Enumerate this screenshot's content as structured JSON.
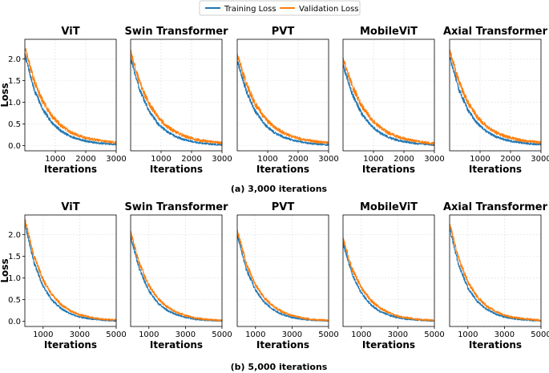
{
  "legend": [
    {
      "label": "Training Loss",
      "color": "#1f77b4"
    },
    {
      "label": "Validation Loss",
      "color": "#ff7f0e"
    }
  ],
  "captions": [
    "(a) 3,000 iterations",
    "(b) 5,000 iterations"
  ],
  "chart_data": [
    {
      "type": "line",
      "row": 0,
      "col": 0,
      "title": "ViT",
      "xlabel": "Iterations",
      "ylabel": "Loss",
      "xlim": [
        0,
        3000
      ],
      "ylim": [
        -0.12,
        2.45
      ],
      "xticks": [
        1000,
        2000,
        3000
      ],
      "xticklabels": [
        "1000",
        "2000",
        "3000"
      ],
      "yticks": [
        0.0,
        0.5,
        1.0,
        1.5,
        2.0
      ],
      "yticklabels": [
        "0.0",
        "0.5",
        "1.0",
        "1.5",
        "2.0"
      ],
      "series": [
        {
          "name": "Training Loss",
          "color": "#1f77b4",
          "x": [
            0,
            300,
            600,
            900,
            1200,
            1500,
            1800,
            2100,
            2400,
            2700,
            3000
          ],
          "y": [
            2.1,
            1.3,
            0.82,
            0.52,
            0.33,
            0.21,
            0.14,
            0.09,
            0.06,
            0.04,
            0.03
          ],
          "noise": 0.06
        },
        {
          "name": "Validation Loss",
          "color": "#ff7f0e",
          "x": [
            0,
            300,
            600,
            900,
            1200,
            1500,
            1800,
            2100,
            2400,
            2700,
            3000
          ],
          "y": [
            2.25,
            1.5,
            1.0,
            0.67,
            0.45,
            0.31,
            0.22,
            0.16,
            0.12,
            0.09,
            0.07
          ],
          "noise": 0.08
        }
      ]
    },
    {
      "type": "line",
      "row": 0,
      "col": 1,
      "title": "Swin Transformer",
      "xlabel": "Iterations",
      "ylabel": "",
      "xlim": [
        0,
        3000
      ],
      "ylim": [
        -0.12,
        2.45
      ],
      "xticks": [
        1000,
        2000,
        3000
      ],
      "xticklabels": [
        "1000",
        "2000",
        "3000"
      ],
      "yticks": [],
      "yticklabels": [],
      "series": [
        {
          "name": "Training Loss",
          "color": "#1f77b4",
          "x": [
            0,
            300,
            600,
            900,
            1200,
            1500,
            1800,
            2100,
            2400,
            2700,
            3000
          ],
          "y": [
            2.0,
            1.28,
            0.8,
            0.5,
            0.32,
            0.2,
            0.13,
            0.08,
            0.05,
            0.03,
            0.02
          ],
          "noise": 0.06
        },
        {
          "name": "Validation Loss",
          "color": "#ff7f0e",
          "x": [
            0,
            300,
            600,
            900,
            1200,
            1500,
            1800,
            2100,
            2400,
            2700,
            3000
          ],
          "y": [
            2.15,
            1.45,
            0.97,
            0.65,
            0.44,
            0.3,
            0.21,
            0.15,
            0.11,
            0.08,
            0.06
          ],
          "noise": 0.08
        }
      ]
    },
    {
      "type": "line",
      "row": 0,
      "col": 2,
      "title": "PVT",
      "xlabel": "Iterations",
      "ylabel": "",
      "xlim": [
        0,
        3000
      ],
      "ylim": [
        -0.12,
        2.45
      ],
      "xticks": [
        1000,
        2000,
        3000
      ],
      "xticklabels": [
        "1000",
        "2000",
        "3000"
      ],
      "yticks": [],
      "yticklabels": [],
      "series": [
        {
          "name": "Training Loss",
          "color": "#1f77b4",
          "x": [
            0,
            300,
            600,
            900,
            1200,
            1500,
            1800,
            2100,
            2400,
            2700,
            3000
          ],
          "y": [
            1.95,
            1.25,
            0.78,
            0.49,
            0.31,
            0.2,
            0.13,
            0.08,
            0.05,
            0.03,
            0.02
          ],
          "noise": 0.06
        },
        {
          "name": "Validation Loss",
          "color": "#ff7f0e",
          "x": [
            0,
            300,
            600,
            900,
            1200,
            1500,
            1800,
            2100,
            2400,
            2700,
            3000
          ],
          "y": [
            2.1,
            1.42,
            0.95,
            0.64,
            0.43,
            0.3,
            0.21,
            0.15,
            0.11,
            0.08,
            0.06
          ],
          "noise": 0.08
        }
      ]
    },
    {
      "type": "line",
      "row": 0,
      "col": 3,
      "title": "MobileViT",
      "xlabel": "Iterations",
      "ylabel": "",
      "xlim": [
        0,
        3000
      ],
      "ylim": [
        -0.12,
        2.45
      ],
      "xticks": [
        1000,
        2000,
        3000
      ],
      "xticklabels": [
        "1000",
        "2000",
        "3000"
      ],
      "yticks": [],
      "yticklabels": [],
      "series": [
        {
          "name": "Training Loss",
          "color": "#1f77b4",
          "x": [
            0,
            300,
            600,
            900,
            1200,
            1500,
            1800,
            2100,
            2400,
            2700,
            3000
          ],
          "y": [
            1.85,
            1.2,
            0.75,
            0.47,
            0.3,
            0.19,
            0.12,
            0.08,
            0.05,
            0.03,
            0.02
          ],
          "noise": 0.06
        },
        {
          "name": "Validation Loss",
          "color": "#ff7f0e",
          "x": [
            0,
            300,
            600,
            900,
            1200,
            1500,
            1800,
            2100,
            2400,
            2700,
            3000
          ],
          "y": [
            2.0,
            1.38,
            0.93,
            0.63,
            0.43,
            0.29,
            0.2,
            0.14,
            0.1,
            0.07,
            0.05
          ],
          "noise": 0.08
        }
      ]
    },
    {
      "type": "line",
      "row": 0,
      "col": 4,
      "title": "Axial Transformer",
      "xlabel": "Iterations",
      "ylabel": "",
      "xlim": [
        0,
        3000
      ],
      "ylim": [
        -0.12,
        2.45
      ],
      "xticks": [
        1000,
        2000,
        3000
      ],
      "xticklabels": [
        "1000",
        "2000",
        "3000"
      ],
      "yticks": [],
      "yticklabels": [],
      "series": [
        {
          "name": "Training Loss",
          "color": "#1f77b4",
          "x": [
            0,
            300,
            600,
            900,
            1200,
            1500,
            1800,
            2100,
            2400,
            2700,
            3000
          ],
          "y": [
            2.05,
            1.3,
            0.82,
            0.52,
            0.33,
            0.21,
            0.14,
            0.09,
            0.06,
            0.04,
            0.03
          ],
          "noise": 0.06
        },
        {
          "name": "Validation Loss",
          "color": "#ff7f0e",
          "x": [
            0,
            300,
            600,
            900,
            1200,
            1500,
            1800,
            2100,
            2400,
            2700,
            3000
          ],
          "y": [
            2.2,
            1.48,
            0.99,
            0.66,
            0.45,
            0.31,
            0.22,
            0.16,
            0.12,
            0.09,
            0.07
          ],
          "noise": 0.08
        }
      ]
    },
    {
      "type": "line",
      "row": 1,
      "col": 0,
      "title": "ViT",
      "xlabel": "Iterations",
      "ylabel": "Loss",
      "xlim": [
        0,
        5000
      ],
      "ylim": [
        -0.12,
        2.45
      ],
      "xticks": [
        1000,
        3000,
        5000
      ],
      "xticklabels": [
        "1000",
        "3000",
        "5000"
      ],
      "yticks": [
        0.0,
        0.5,
        1.0,
        1.5,
        2.0
      ],
      "yticklabels": [
        "0.0",
        "0.5",
        "1.0",
        "1.5",
        "2.0"
      ],
      "series": [
        {
          "name": "Training Loss",
          "color": "#1f77b4",
          "x": [
            0,
            500,
            1000,
            1500,
            2000,
            2500,
            3000,
            3500,
            4000,
            4500,
            5000
          ],
          "y": [
            2.25,
            1.35,
            0.8,
            0.48,
            0.29,
            0.17,
            0.1,
            0.06,
            0.04,
            0.02,
            0.01
          ],
          "noise": 0.05
        },
        {
          "name": "Validation Loss",
          "color": "#ff7f0e",
          "x": [
            0,
            500,
            1000,
            1500,
            2000,
            2500,
            3000,
            3500,
            4000,
            4500,
            5000
          ],
          "y": [
            2.35,
            1.5,
            0.95,
            0.6,
            0.38,
            0.24,
            0.15,
            0.1,
            0.06,
            0.04,
            0.03
          ],
          "noise": 0.06
        }
      ]
    },
    {
      "type": "line",
      "row": 1,
      "col": 1,
      "title": "Swin Transformer",
      "xlabel": "Iterations",
      "ylabel": "",
      "xlim": [
        0,
        5000
      ],
      "ylim": [
        -0.12,
        2.45
      ],
      "xticks": [
        1000,
        3000,
        5000
      ],
      "xticklabels": [
        "1000",
        "3000",
        "5000"
      ],
      "yticks": [],
      "yticklabels": [],
      "series": [
        {
          "name": "Training Loss",
          "color": "#1f77b4",
          "x": [
            0,
            500,
            1000,
            1500,
            2000,
            2500,
            3000,
            3500,
            4000,
            4500,
            5000
          ],
          "y": [
            1.95,
            1.17,
            0.7,
            0.42,
            0.25,
            0.15,
            0.09,
            0.05,
            0.03,
            0.02,
            0.01
          ],
          "noise": 0.05
        },
        {
          "name": "Validation Loss",
          "color": "#ff7f0e",
          "x": [
            0,
            500,
            1000,
            1500,
            2000,
            2500,
            3000,
            3500,
            4000,
            4500,
            5000
          ],
          "y": [
            2.05,
            1.3,
            0.82,
            0.52,
            0.33,
            0.21,
            0.13,
            0.08,
            0.05,
            0.03,
            0.02
          ],
          "noise": 0.06
        }
      ]
    },
    {
      "type": "line",
      "row": 1,
      "col": 2,
      "title": "PVT",
      "xlabel": "Iterations",
      "ylabel": "",
      "xlim": [
        0,
        5000
      ],
      "ylim": [
        -0.12,
        2.45
      ],
      "xticks": [
        1000,
        3000,
        5000
      ],
      "xticklabels": [
        "1000",
        "3000",
        "5000"
      ],
      "yticks": [],
      "yticklabels": [],
      "series": [
        {
          "name": "Training Loss",
          "color": "#1f77b4",
          "x": [
            0,
            500,
            1000,
            1500,
            2000,
            2500,
            3000,
            3500,
            4000,
            4500,
            5000
          ],
          "y": [
            2.0,
            1.2,
            0.72,
            0.43,
            0.26,
            0.15,
            0.09,
            0.05,
            0.03,
            0.02,
            0.01
          ],
          "noise": 0.05
        },
        {
          "name": "Validation Loss",
          "color": "#ff7f0e",
          "x": [
            0,
            500,
            1000,
            1500,
            2000,
            2500,
            3000,
            3500,
            4000,
            4500,
            5000
          ],
          "y": [
            2.1,
            1.33,
            0.84,
            0.53,
            0.34,
            0.21,
            0.13,
            0.08,
            0.05,
            0.03,
            0.02
          ],
          "noise": 0.06
        }
      ]
    },
    {
      "type": "line",
      "row": 1,
      "col": 3,
      "title": "MobileViT",
      "xlabel": "Iterations",
      "ylabel": "",
      "xlim": [
        0,
        5000
      ],
      "ylim": [
        -0.12,
        2.45
      ],
      "xticks": [
        1000,
        3000,
        5000
      ],
      "xticklabels": [
        "1000",
        "3000",
        "5000"
      ],
      "yticks": [],
      "yticklabels": [],
      "series": [
        {
          "name": "Training Loss",
          "color": "#1f77b4",
          "x": [
            0,
            500,
            1000,
            1500,
            2000,
            2500,
            3000,
            3500,
            4000,
            4500,
            5000
          ],
          "y": [
            1.8,
            1.08,
            0.65,
            0.39,
            0.23,
            0.14,
            0.08,
            0.05,
            0.03,
            0.02,
            0.01
          ],
          "noise": 0.05
        },
        {
          "name": "Validation Loss",
          "color": "#ff7f0e",
          "x": [
            0,
            500,
            1000,
            1500,
            2000,
            2500,
            3000,
            3500,
            4000,
            4500,
            5000
          ],
          "y": [
            1.9,
            1.21,
            0.77,
            0.49,
            0.31,
            0.2,
            0.12,
            0.08,
            0.05,
            0.03,
            0.02
          ],
          "noise": 0.06
        }
      ]
    },
    {
      "type": "line",
      "row": 1,
      "col": 4,
      "title": "Axial Transformer",
      "xlabel": "Iterations",
      "ylabel": "",
      "xlim": [
        0,
        5000
      ],
      "ylim": [
        -0.12,
        2.45
      ],
      "xticks": [
        1000,
        3000,
        5000
      ],
      "xticklabels": [
        "1000",
        "3000",
        "5000"
      ],
      "yticks": [],
      "yticklabels": [],
      "series": [
        {
          "name": "Training Loss",
          "color": "#1f77b4",
          "x": [
            0,
            500,
            1000,
            1500,
            2000,
            2500,
            3000,
            3500,
            4000,
            4500,
            5000
          ],
          "y": [
            2.15,
            1.29,
            0.77,
            0.46,
            0.28,
            0.17,
            0.1,
            0.06,
            0.04,
            0.02,
            0.01
          ],
          "noise": 0.05
        },
        {
          "name": "Validation Loss",
          "color": "#ff7f0e",
          "x": [
            0,
            500,
            1000,
            1500,
            2000,
            2500,
            3000,
            3500,
            4000,
            4500,
            5000
          ],
          "y": [
            2.25,
            1.43,
            0.9,
            0.57,
            0.36,
            0.23,
            0.14,
            0.09,
            0.06,
            0.04,
            0.02
          ],
          "noise": 0.06
        }
      ]
    }
  ]
}
